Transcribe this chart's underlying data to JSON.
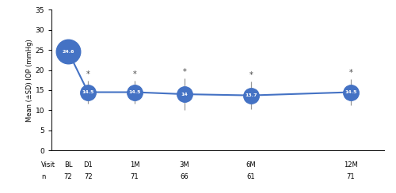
{
  "x_positions": [
    0,
    0.6,
    2.0,
    3.5,
    5.5,
    8.5
  ],
  "x_labels_line1": [
    "BL",
    "D1",
    "1M",
    "3M",
    "6M",
    "12M"
  ],
  "x_labels_line2": [
    "72",
    "72",
    "71",
    "66",
    "61",
    "71"
  ],
  "means": [
    24.6,
    14.5,
    14.5,
    14.0,
    13.7,
    14.5
  ],
  "errors": [
    0.8,
    2.8,
    2.8,
    4.0,
    3.5,
    3.2
  ],
  "line_color": "#4472C4",
  "marker_color": "#4472C4",
  "marker_sizes": [
    22,
    14,
    14,
    14,
    14,
    14
  ],
  "marker_text_color": "#ffffff",
  "marker_text_size": 4.5,
  "marker_text_labels": [
    "24.6",
    "14.5",
    "14.5",
    "14",
    "13.7",
    "14.5"
  ],
  "ylabel": "Mean (±SD) IOP (mmHg)",
  "ylim": [
    0,
    35
  ],
  "yticks": [
    0,
    5,
    10,
    15,
    20,
    25,
    30,
    35
  ],
  "asterisk_indices": [
    1,
    2,
    3,
    4,
    5
  ],
  "background_color": "#ffffff",
  "figure_width": 5.0,
  "figure_height": 2.44,
  "dpi": 100,
  "visit_label": "Visit",
  "n_label": "n",
  "xlim": [
    -0.5,
    9.5
  ]
}
